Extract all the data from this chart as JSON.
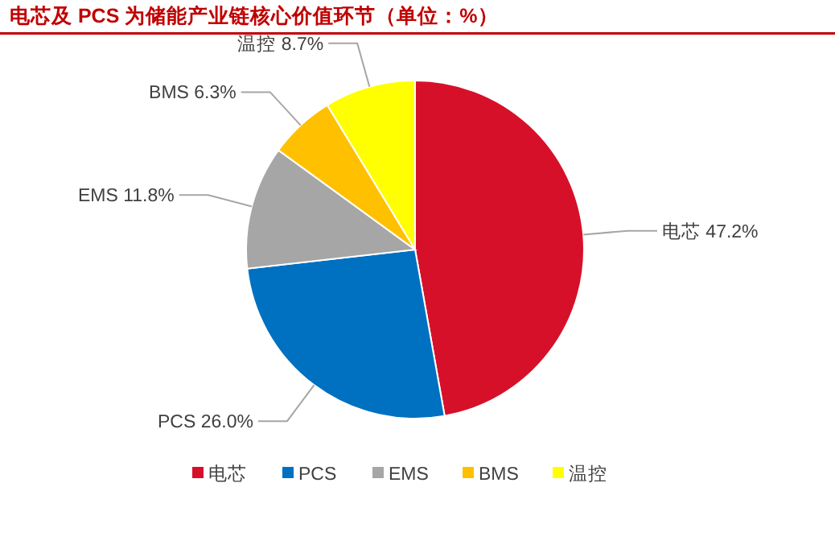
{
  "chart_data": {
    "type": "pie",
    "title": "电芯及 PCS 为储能产业链核心价值环节（单位：%）",
    "categories": [
      "电芯",
      "PCS",
      "EMS",
      "BMS",
      "温控"
    ],
    "values": [
      47.2,
      26.0,
      11.8,
      6.3,
      8.7
    ],
    "colors": [
      "#d7102a",
      "#0070c0",
      "#a6a6a6",
      "#ffc000",
      "#ffff00"
    ],
    "value_labels": [
      "电芯 47.2%",
      "PCS 26.0%",
      "EMS 11.8%",
      "BMS 6.3%",
      "温控 8.7%"
    ],
    "legend": "bottom"
  }
}
